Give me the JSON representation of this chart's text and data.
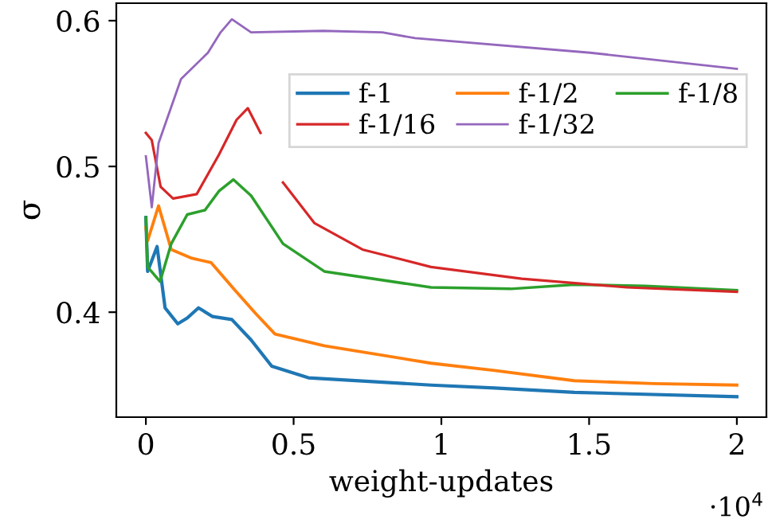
{
  "chart_data": {
    "type": "line",
    "xlabel": "weight-updates",
    "ylabel": "σ",
    "xlim": [
      -0.1,
      2.1
    ],
    "ylim": [
      0.328,
      0.612
    ],
    "xticks": [
      0,
      0.5,
      1,
      1.5,
      2
    ],
    "yticks": [
      0.4,
      0.5,
      0.6
    ],
    "annotations": [
      "·10$^{4}$"
    ],
    "grid": false,
    "legend": "top right",
    "marker": "none",
    "line_style": "solid",
    "series": [
      {
        "name": "f-1",
        "color": "#1f77b4",
        "x": [
          0,
          0.006,
          0.038,
          0.065,
          0.108,
          0.14,
          0.178,
          0.226,
          0.291,
          0.356,
          0.426,
          0.55,
          0.965,
          1.18,
          1.45,
          2.0
        ],
        "values": [
          0.465,
          0.428,
          0.445,
          0.403,
          0.392,
          0.396,
          0.403,
          0.397,
          0.395,
          0.381,
          0.363,
          0.355,
          0.35,
          0.348,
          0.345,
          0.342
        ]
      },
      {
        "name": "f-1/2",
        "color": "#ff7f0e",
        "x": [
          0,
          0.006,
          0.043,
          0.086,
          0.156,
          0.221,
          0.302,
          0.372,
          0.437,
          0.604,
          0.965,
          1.18,
          1.45,
          1.72,
          2.0
        ],
        "values": [
          0.458,
          0.449,
          0.473,
          0.443,
          0.437,
          0.434,
          0.415,
          0.399,
          0.385,
          0.377,
          0.365,
          0.36,
          0.353,
          0.351,
          0.35
        ]
      },
      {
        "name": "f-1/8",
        "color": "#2ca02c",
        "x": [
          0,
          0.006,
          0.048,
          0.086,
          0.14,
          0.2,
          0.247,
          0.296,
          0.356,
          0.464,
          0.604,
          0.965,
          1.235,
          1.45,
          1.69,
          2.0
        ],
        "values": [
          0.465,
          0.431,
          0.421,
          0.447,
          0.467,
          0.47,
          0.483,
          0.491,
          0.48,
          0.447,
          0.428,
          0.417,
          0.416,
          0.419,
          0.418,
          0.415
        ]
      },
      {
        "name": "f-1/16",
        "color": "#d62728",
        "x": [
          0,
          0.02,
          0.05,
          0.092,
          0.172,
          0.247,
          0.307,
          0.345,
          0.388,
          0.42,
          0.464,
          0.571,
          0.733,
          0.965,
          1.272,
          1.628,
          2.0
        ],
        "values": [
          0.523,
          0.518,
          0.486,
          0.478,
          0.481,
          0.508,
          0.532,
          0.54,
          0.523,
          null,
          0.489,
          0.461,
          0.443,
          0.431,
          0.423,
          0.417,
          0.414
        ]
      },
      {
        "name": "f-1/32",
        "color": "#9467bd",
        "x": [
          0,
          0.02,
          0.043,
          0.119,
          0.21,
          0.253,
          0.291,
          0.356,
          0.6,
          0.8,
          0.911,
          1.504,
          2.0
        ],
        "values": [
          0.507,
          0.472,
          0.516,
          0.56,
          0.578,
          0.592,
          0.601,
          0.592,
          0.593,
          0.592,
          0.588,
          0.578,
          0.567
        ]
      }
    ]
  }
}
